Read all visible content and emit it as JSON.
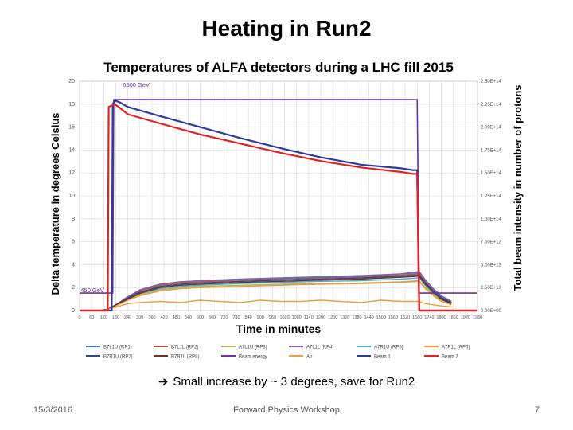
{
  "slide": {
    "title": "Heating in Run2",
    "note_arrow": "➔",
    "note": "Small increase by ~ 3 degrees, save for Run2",
    "footer_date": "15/3/2016",
    "footer_event": "Forward Physics Workshop",
    "page_number": "7"
  },
  "colors": {
    "plot_border": "#bfbfbf",
    "grid": "#d9d9d9",
    "beam_energy": "#7030a0",
    "beam_1": "#2e3c9e",
    "beam_2": "#e32222"
  },
  "chart_data": {
    "type": "line",
    "title": "Temperatures of ALFA detectors during a LHC fill 2015",
    "xlabel": "Time in minutes",
    "ylabel": "Delta temperature in degrees Celsius",
    "y2label": "Total beam intensity in number of protons",
    "xlim": [
      0,
      1980
    ],
    "ylim": [
      0,
      20
    ],
    "y2lim": [
      0,
      250000000000000.0
    ],
    "x_ticks": [
      "0",
      "60",
      "120",
      "180",
      "240",
      "300",
      "360",
      "420",
      "480",
      "540",
      "600",
      "660",
      "720",
      "780",
      "840",
      "900",
      "960",
      "1020",
      "1080",
      "1140",
      "1200",
      "1260",
      "1320",
      "1380",
      "1440",
      "1500",
      "1560",
      "1620",
      "1680",
      "1740",
      "1800",
      "1860",
      "1920",
      "1980"
    ],
    "y_ticks": [
      "0",
      "2",
      "4",
      "6",
      "8",
      "10",
      "12",
      "14",
      "16",
      "18",
      "20"
    ],
    "y2_ticks": [
      "0.00E+00",
      "2.50E+13",
      "5.00E+13",
      "7.50E+13",
      "1.00E+14",
      "1.25E+14",
      "1.50E+14",
      "1.75E+14",
      "2.00E+14",
      "2.25E+14",
      "2.50E+14"
    ],
    "annotations": [
      {
        "text": "6500 GeV",
        "x": 215,
        "y": 19.5
      },
      {
        "text": "450 GeV",
        "x": 5,
        "y": 1.6
      }
    ],
    "grid": true,
    "legend_position": "bottom",
    "series": [
      {
        "name": "B7L1U (RP1)",
        "color": "#4a78c0",
        "axis": "left",
        "x": [
          0,
          100,
          140,
          180,
          240,
          300,
          400,
          500,
          600,
          800,
          1000,
          1200,
          1400,
          1600,
          1690,
          1720,
          1760,
          1800,
          1850
        ],
        "y": [
          0,
          0,
          0.1,
          0.5,
          1.2,
          1.8,
          2.3,
          2.5,
          2.6,
          2.75,
          2.85,
          2.95,
          3.05,
          3.2,
          3.3,
          2.6,
          1.8,
          1.2,
          0.8
        ]
      },
      {
        "name": "B7L1L (RP2)",
        "color": "#b8504b",
        "axis": "left",
        "x": [
          0,
          100,
          140,
          180,
          240,
          300,
          400,
          500,
          600,
          800,
          1000,
          1200,
          1400,
          1600,
          1690,
          1720,
          1760,
          1800,
          1850
        ],
        "y": [
          0,
          0,
          0.1,
          0.5,
          1.1,
          1.7,
          2.2,
          2.4,
          2.5,
          2.65,
          2.75,
          2.85,
          2.95,
          3.1,
          3.2,
          2.5,
          1.7,
          1.1,
          0.7
        ]
      },
      {
        "name": "A7L1U (RP3)",
        "color": "#9bbb59",
        "axis": "left",
        "x": [
          0,
          100,
          140,
          180,
          240,
          300,
          400,
          500,
          600,
          800,
          1000,
          1200,
          1400,
          1600,
          1690,
          1720,
          1760,
          1800,
          1850
        ],
        "y": [
          0,
          0,
          0.1,
          0.4,
          1.0,
          1.4,
          1.8,
          2.0,
          2.1,
          2.2,
          2.3,
          2.35,
          2.4,
          2.5,
          2.6,
          2.0,
          1.4,
          0.9,
          0.6
        ]
      },
      {
        "name": "A7L1L (RP4)",
        "color": "#7f60a8",
        "axis": "left",
        "x": [
          0,
          100,
          140,
          180,
          240,
          300,
          400,
          500,
          600,
          800,
          1000,
          1200,
          1400,
          1600,
          1690,
          1720,
          1760,
          1800,
          1850
        ],
        "y": [
          0,
          0,
          0.1,
          0.5,
          1.2,
          1.8,
          2.3,
          2.5,
          2.6,
          2.7,
          2.8,
          2.9,
          3.0,
          3.2,
          3.4,
          2.7,
          1.9,
          1.3,
          0.8
        ]
      },
      {
        "name": "A7R1U (RP5)",
        "color": "#4bacc6",
        "axis": "left",
        "x": [
          0,
          100,
          140,
          180,
          240,
          300,
          400,
          500,
          600,
          800,
          1000,
          1200,
          1400,
          1600,
          1690,
          1720,
          1760,
          1800,
          1850
        ],
        "y": [
          0,
          0,
          0.1,
          0.4,
          1.0,
          1.5,
          1.9,
          2.1,
          2.2,
          2.35,
          2.45,
          2.55,
          2.6,
          2.75,
          2.85,
          2.2,
          1.5,
          1.0,
          0.6
        ]
      },
      {
        "name": "A7R1L (RP6)",
        "color": "#f79646",
        "axis": "left",
        "x": [
          0,
          100,
          140,
          180,
          240,
          300,
          400,
          500,
          600,
          800,
          1000,
          1200,
          1400,
          1600,
          1690,
          1720,
          1760,
          1800,
          1850
        ],
        "y": [
          0,
          0,
          0.1,
          0.4,
          0.9,
          1.3,
          1.7,
          1.9,
          2.0,
          2.1,
          2.2,
          2.3,
          2.35,
          2.45,
          2.55,
          1.9,
          1.3,
          0.8,
          0.5
        ]
      },
      {
        "name": "B7R1U (RP7)",
        "color": "#2c4d75",
        "axis": "left",
        "x": [
          0,
          100,
          140,
          180,
          240,
          300,
          400,
          500,
          600,
          800,
          1000,
          1200,
          1400,
          1600,
          1690,
          1720,
          1760,
          1800,
          1850
        ],
        "y": [
          0,
          0,
          0.1,
          0.5,
          1.1,
          1.6,
          2.1,
          2.3,
          2.4,
          2.55,
          2.65,
          2.75,
          2.85,
          3.0,
          3.1,
          2.4,
          1.7,
          1.1,
          0.7
        ]
      },
      {
        "name": "B7R1L (RP8)",
        "color": "#772c2a",
        "axis": "left",
        "x": [
          0,
          100,
          140,
          180,
          240,
          300,
          400,
          500,
          600,
          800,
          1000,
          1200,
          1400,
          1600,
          1690,
          1720,
          1760,
          1800,
          1850
        ],
        "y": [
          0,
          0,
          0.1,
          0.5,
          1.0,
          1.5,
          2.0,
          2.2,
          2.3,
          2.45,
          2.55,
          2.65,
          2.75,
          2.9,
          3.0,
          2.3,
          1.6,
          1.0,
          0.6
        ]
      },
      {
        "name": "Beam energy",
        "color": "#7030a0",
        "axis": "right",
        "x": [
          0,
          165,
          170,
          210,
          1680,
          1690,
          1760,
          1770,
          1980
        ],
        "y": [
          19000000000000.0,
          19000000000000.0,
          230000000000000.0,
          230000000000000.0,
          230000000000000.0,
          19000000000000.0,
          19000000000000.0,
          19000000000000.0,
          19000000000000.0
        ]
      },
      {
        "name": "Air",
        "color": "#e8a040",
        "axis": "left",
        "x": [
          0,
          120,
          180,
          240,
          300,
          400,
          500,
          600,
          700,
          800,
          900,
          1000,
          1100,
          1200,
          1300,
          1400,
          1500,
          1600,
          1690,
          1720,
          1800,
          1860
        ],
        "y": [
          0,
          0,
          0.3,
          0.6,
          0.7,
          0.8,
          0.7,
          0.9,
          0.8,
          0.7,
          0.9,
          0.8,
          0.8,
          0.9,
          0.8,
          0.7,
          0.9,
          0.8,
          0.8,
          0.6,
          0.4,
          0.3
        ]
      },
      {
        "name": "Beam 1",
        "color": "#2e3c9e",
        "axis": "right",
        "x": [
          0,
          160,
          165,
          175,
          200,
          240,
          400,
          600,
          800,
          1000,
          1200,
          1400,
          1600,
          1660,
          1680,
          1690,
          1980
        ],
        "y": [
          0,
          0,
          225000000000000.0,
          229000000000000.0,
          227000000000000.0,
          222000000000000.0,
          212000000000000.0,
          200000000000000.0,
          188000000000000.0,
          177000000000000.0,
          167000000000000.0,
          159000000000000.0,
          155000000000000.0,
          153000000000000.0,
          153000000000000.0,
          0,
          0
        ]
      },
      {
        "name": "Beam 2",
        "color": "#e32222",
        "axis": "right",
        "x": [
          0,
          140,
          145,
          175,
          200,
          240,
          400,
          600,
          800,
          1000,
          1200,
          1400,
          1600,
          1660,
          1680,
          1690,
          1980
        ],
        "y": [
          0,
          0,
          222000000000000.0,
          225000000000000.0,
          221000000000000.0,
          214000000000000.0,
          204000000000000.0,
          192000000000000.0,
          182000000000000.0,
          172000000000000.0,
          163000000000000.0,
          156000000000000.0,
          151000000000000.0,
          149000000000000.0,
          149000000000000.0,
          0,
          0
        ]
      }
    ]
  }
}
